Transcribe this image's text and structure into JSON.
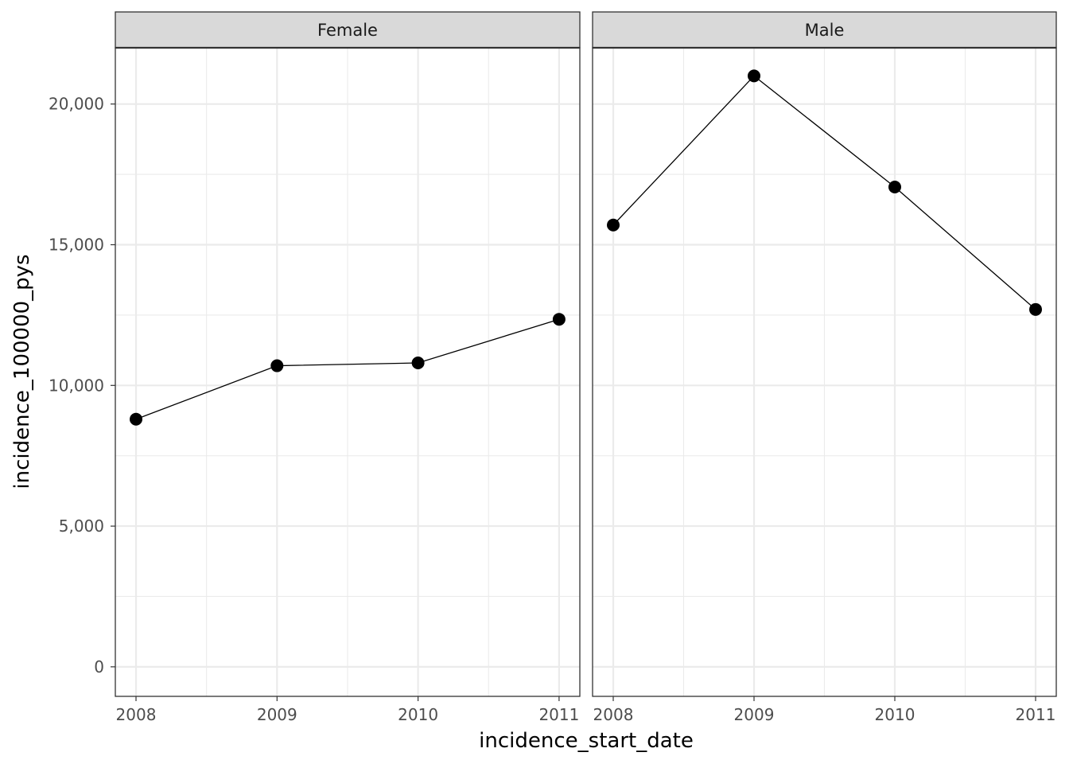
{
  "chart_data": {
    "type": "line",
    "facet_by": "sex",
    "markers": true,
    "grid": true,
    "xlabel": "incidence_start_date",
    "ylabel": "incidence_100000_pys",
    "x_ticks": [
      "2008",
      "2009",
      "2010",
      "2011"
    ],
    "x_range": [
      2007.86,
      2011.0
    ],
    "y_ticks": [
      0,
      5000,
      10000,
      15000,
      20000
    ],
    "y_tick_labels": [
      "0",
      "5,000",
      "10,000",
      "15,000",
      "20,000"
    ],
    "ylim": [
      -1050,
      22000
    ],
    "colors": {
      "line": "#000000",
      "point": "#000000",
      "strip_fill": "#d9d9d9",
      "grid": "#ebebeb",
      "panel_border": "#333333"
    },
    "panels": [
      {
        "name": "Female",
        "x": [
          "2008",
          "2009",
          "2010",
          "2011"
        ],
        "y": [
          8800,
          10700,
          10800,
          12350
        ]
      },
      {
        "name": "Male",
        "x": [
          "2008",
          "2009",
          "2010",
          "2011"
        ],
        "y": [
          15700,
          21000,
          17050,
          12700
        ]
      }
    ]
  }
}
